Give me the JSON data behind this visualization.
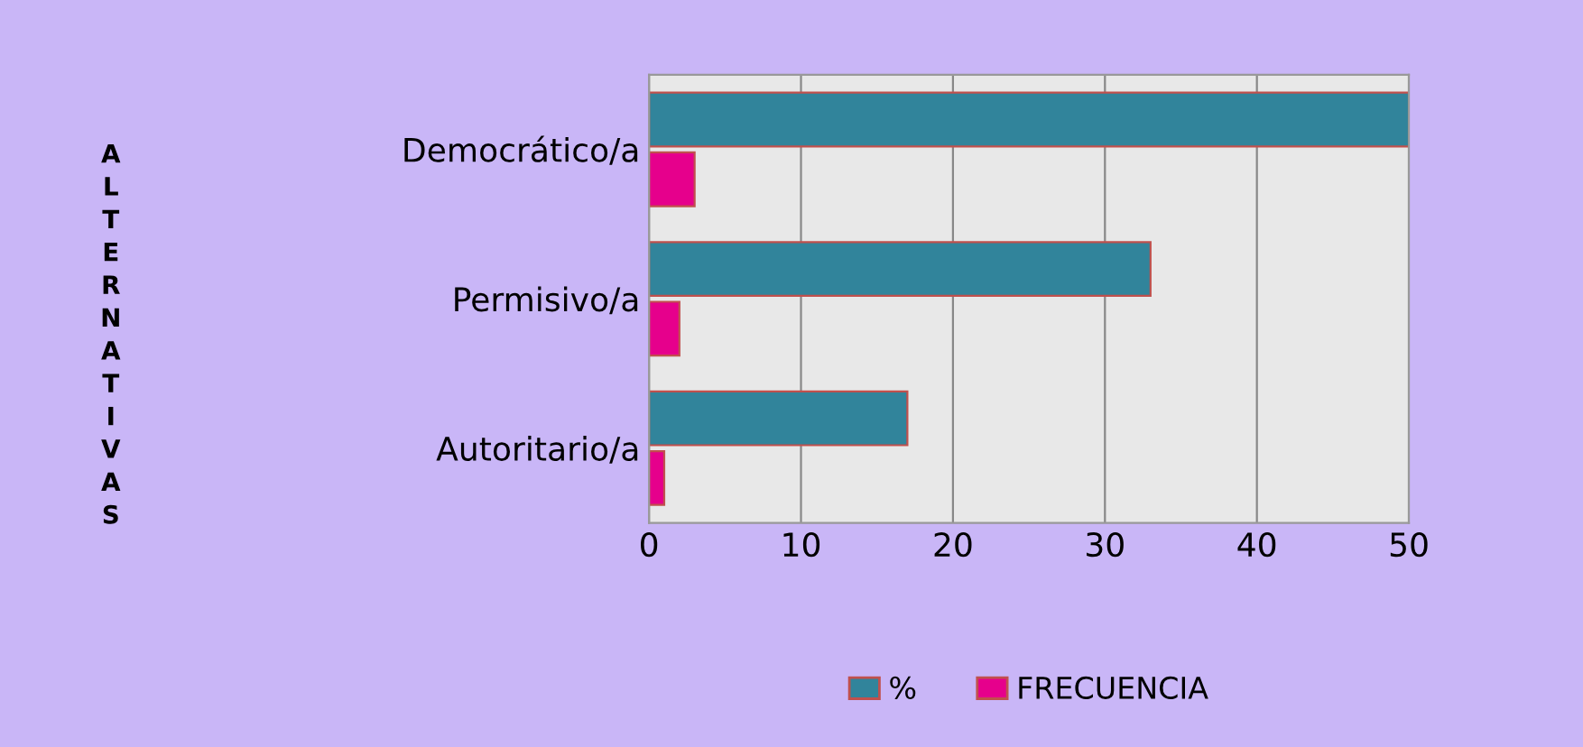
{
  "chart_data": {
    "type": "bar",
    "orientation": "horizontal",
    "ylabel": "ALTERNATIVAS",
    "categories": [
      "Democrático/a",
      "Permisivo/a",
      "Autoritario/a"
    ],
    "series": [
      {
        "name": "%",
        "color": "#31849b",
        "values": [
          50,
          33,
          17
        ]
      },
      {
        "name": "FRECUENCIA",
        "color": "#e6008c",
        "values": [
          3,
          2,
          1
        ]
      }
    ],
    "xlim": [
      0,
      50
    ],
    "xticks": [
      0,
      10,
      20,
      30,
      40,
      50
    ],
    "grid": "x",
    "legend": "bottom"
  }
}
